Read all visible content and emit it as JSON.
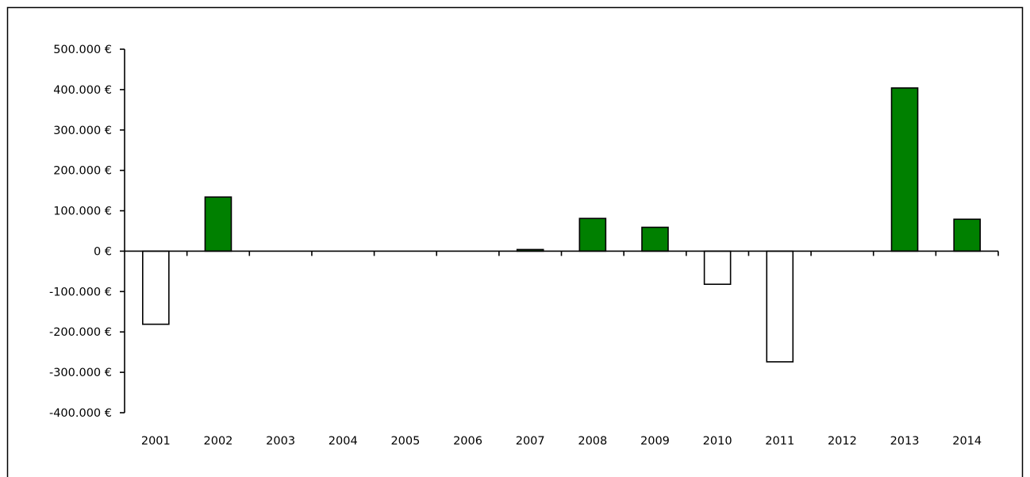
{
  "chart_data": {
    "type": "bar",
    "categories": [
      "2001",
      "2002",
      "2003",
      "2004",
      "2005",
      "2006",
      "2007",
      "2008",
      "2009",
      "2010",
      "2011",
      "2012",
      "2013",
      "2014"
    ],
    "values": [
      -181000,
      134000,
      0,
      0,
      0,
      0,
      4000,
      81000,
      59000,
      -82000,
      -274000,
      0,
      404000,
      79000
    ],
    "ylim": [
      -400000,
      500000
    ],
    "yticks": [
      500000,
      400000,
      300000,
      200000,
      100000,
      0,
      -100000,
      -200000,
      -300000,
      -400000
    ],
    "ytick_labels": [
      "500.000 €",
      "400.000 €",
      "300.000 €",
      "200.000 €",
      "100.000 €",
      "0 €",
      "-100.000 €",
      "-200.000 €",
      "-300.000 €",
      "-400.000 €"
    ],
    "grid": false,
    "legend": "none",
    "title": "",
    "xlabel": "",
    "ylabel": "",
    "colors": {
      "positive": "#008000",
      "negative": "#ffffff",
      "outline": "#000000"
    }
  }
}
